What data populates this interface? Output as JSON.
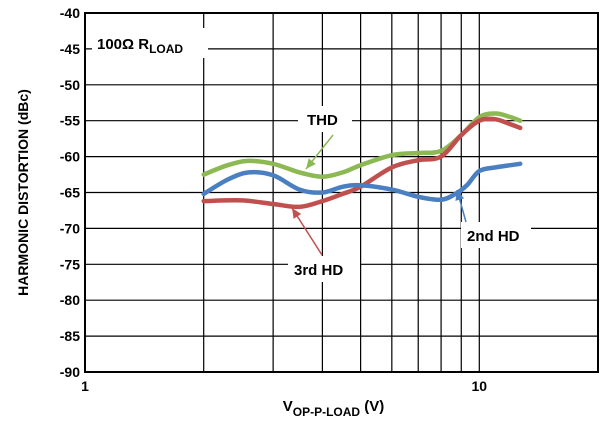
{
  "chart_data": {
    "type": "line",
    "title": "",
    "xlabel": {
      "main": "V",
      "sub": "OP-P-LOAD",
      "suffix": " (V)"
    },
    "ylabel": "HARMONIC DISTORTION (dBc)",
    "x_scale": "log",
    "xlim": [
      1,
      20
    ],
    "ylim": [
      -90,
      -40
    ],
    "x_tick_labels": [
      {
        "value": 1,
        "label": "1"
      },
      {
        "value": 10,
        "label": "10"
      }
    ],
    "y_ticks": [
      -40,
      -45,
      -50,
      -55,
      -60,
      -65,
      -70,
      -75,
      -80,
      -85,
      -90
    ],
    "grid": true,
    "annotations": [
      {
        "text": "100Ω R",
        "sub": "LOAD",
        "location": "top-left"
      }
    ],
    "series": [
      {
        "name": "THD",
        "color": "#8db954",
        "x": [
          2,
          2.3,
          2.6,
          3,
          3.5,
          4,
          4.5,
          5,
          6,
          7,
          8,
          9,
          10,
          11,
          12,
          12.7
        ],
        "y": [
          -62.5,
          -61.2,
          -60.6,
          -61.0,
          -62.2,
          -62.8,
          -62.2,
          -61.2,
          -59.8,
          -59.5,
          -59.2,
          -57.0,
          -54.5,
          -54.0,
          -54.5,
          -55.0
        ]
      },
      {
        "name": "3rd HD",
        "color": "#c0504d",
        "x": [
          2,
          2.5,
          3,
          3.5,
          4,
          4.5,
          5,
          6,
          7,
          8,
          9,
          10,
          11,
          12,
          12.7
        ],
        "y": [
          -66.2,
          -66.1,
          -66.6,
          -67.0,
          -66.2,
          -65.2,
          -64.2,
          -61.5,
          -60.5,
          -60.0,
          -57.0,
          -55.0,
          -54.8,
          -55.5,
          -56.0
        ]
      },
      {
        "name": "2nd HD",
        "color": "#4a7fc1",
        "x": [
          2,
          2.3,
          2.6,
          3,
          3.5,
          4,
          4.5,
          5,
          6,
          7,
          8,
          8.7,
          9.3,
          10,
          11,
          12,
          12.7
        ],
        "y": [
          -65.2,
          -63.2,
          -62.2,
          -62.6,
          -64.6,
          -65.0,
          -64.2,
          -64.0,
          -64.6,
          -65.6,
          -66.0,
          -65.2,
          -64.0,
          -62.0,
          -61.5,
          -61.2,
          -61.0
        ]
      }
    ],
    "labels": [
      {
        "series": "THD",
        "text": "THD"
      },
      {
        "series": "3rd HD",
        "text": "3rd HD"
      },
      {
        "series": "2nd HD",
        "text": "2nd HD"
      }
    ]
  }
}
